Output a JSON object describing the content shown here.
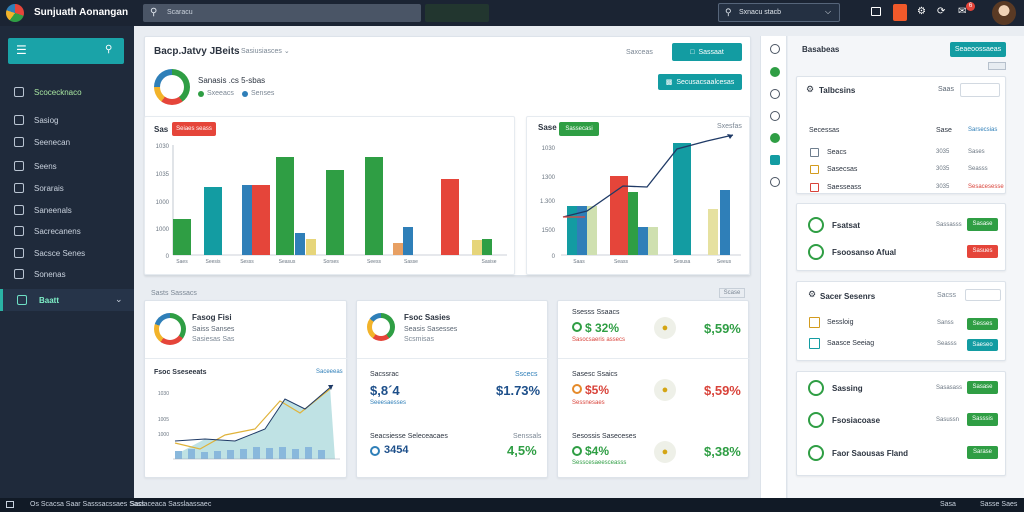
{
  "app": {
    "title": "Sunjuath Aonangan",
    "search_placeholder": "Scaracu",
    "search_right": "Sxnacu stacb",
    "notif_count": "6",
    "tab_placeholder": ""
  },
  "sidebar": {
    "items": [
      {
        "label": "Scocecknaco",
        "icon": "home-icon"
      },
      {
        "label": "Sasiog",
        "icon": "search-icon"
      },
      {
        "label": "Seenecan",
        "icon": "chart-icon"
      },
      {
        "label": "Seens",
        "icon": "list-icon"
      },
      {
        "label": "Sorarais",
        "icon": "table-icon"
      },
      {
        "label": "Saneenals",
        "icon": "document-icon"
      },
      {
        "label": "Sacrecanens",
        "icon": "mail-icon"
      },
      {
        "label": "Sacsce Senes",
        "icon": "settings-icon"
      },
      {
        "label": "Sonenas",
        "icon": "globe-icon"
      }
    ],
    "active": "Baatt"
  },
  "main": {
    "panel1": {
      "title": "Bacp.Jatvy JBeits",
      "filter": "Sasiusiasces",
      "action_label": "Saxceas",
      "btn1": "Sassaat",
      "btn2": "Secusacsaalcesas",
      "donut_label": "Sanasis .cs 5-sbas",
      "legend": [
        "Sxeeacs",
        "Senses"
      ],
      "chart_title": "Sas",
      "chart_tag": "Seiaes seass",
      "ylabels": [
        "1030",
        "1035",
        "1000",
        "1000",
        "0"
      ],
      "xlabels": [
        "Saes",
        "Seesis",
        "Sesss",
        "Seasus",
        "Sorses",
        "Seess",
        "Sasse",
        "Sasise"
      ]
    },
    "panel2": {
      "chart_title": "Sase",
      "chart_tag": "Sassecasi",
      "right_label": "Sxesfas",
      "ylabels": [
        "1030",
        "1300",
        "1.300",
        "1500",
        "0"
      ],
      "xlabels": [
        "Saas",
        "Seass",
        "Sesusa",
        "Seeus"
      ]
    },
    "section_label": "Sasts Sassacs",
    "section_right": "Scase",
    "cards": [
      {
        "title": "Fasog Fisi",
        "sub1": "Saiss Sanses",
        "sub2": "Sasiesas Sas",
        "chart_title": "Fsoc Sseseeats",
        "chart_right": "Saceeeas",
        "ylabels": [
          "1030",
          "1005",
          "1000"
        ]
      },
      {
        "title": "Fsoc Sasies",
        "sub1": "Seasis Sasesses",
        "sub2": "Scsmisas",
        "k1_label": "Sacssrac",
        "k1_value": "$,8´4",
        "k1_sub": "Seeesaesses",
        "k2_label": "Sscecs",
        "k2_value": "$1.73%",
        "k3_label": "Seacsiesse Seleceacaes",
        "k3_value": "3454",
        "k3_right": "Senssals",
        "k4_value": "4,5%"
      },
      {
        "r1_label": "Ssesss Ssaacs",
        "r1_value": "$ 32%",
        "r1_sub": "Sasocsaeris assecs",
        "r1_right": "$,59%",
        "r2_label": "Sasesc Ssaics",
        "r2_value": "$5%",
        "r2_sub": "Sessnesaes",
        "r2_right": "$,59%",
        "r3_label": "Sesossis Saseceses",
        "r3_value": "$4%",
        "r3_sub": "Sesscesaeesceasss",
        "r3_right": "$,38%"
      }
    ]
  },
  "right": {
    "panel_title": "Basabeas",
    "panel_btn": "Seaeoossaeas",
    "list1": {
      "title": "Talbcsins",
      "right": "Saas",
      "input": "",
      "head_label": "Secessas",
      "head_right": "Sase",
      "head_val": "Sarsecsias",
      "rows": [
        {
          "label": "Seacs",
          "v1": "3035",
          "v2": "Sases",
          "color": "#6f7e8e"
        },
        {
          "label": "Sasecsas",
          "v1": "3035",
          "v2": "Seasss",
          "color": "#d39b1e"
        },
        {
          "label": "Saesseass",
          "v1": "3035",
          "v2": "Sesacesesse",
          "color": "#d9433a"
        }
      ]
    },
    "status1": [
      {
        "label": "Fsatsat",
        "right": "Sassasss",
        "btn": "Sasase",
        "color": "green"
      },
      {
        "label": "Fsoosanso Afual",
        "right": "",
        "btn": "Sasues",
        "color": "red"
      }
    ],
    "list2": {
      "title": "Sacer Sesenrs",
      "right": "Sacss",
      "rows": [
        {
          "label": "Sessloig",
          "v1": "Sanss",
          "btn": "Sesses",
          "color": "green"
        },
        {
          "label": "Saasce Seeiag",
          "v1": "Seasss",
          "btn": "Saeseo",
          "color": "teal"
        }
      ]
    },
    "status2": [
      {
        "label": "Sassing",
        "right": "Sasasass",
        "btn": "Sasase",
        "color": "green"
      },
      {
        "label": "Fsosiacoase",
        "right": "Sasussn",
        "btn": "Sasssis",
        "color": "green"
      },
      {
        "label": "Faor Saousas Fland",
        "right": "",
        "btn": "Sarase",
        "color": "green"
      }
    ]
  },
  "statusbar": {
    "left": "Os Scacsa Saar Sasssacssaes Sass",
    "mid": "Saclaceaca Sasslaassaec",
    "right1": "Sasa",
    "right2": "Sasse Saes"
  },
  "colors": {
    "accent": "#139ca2",
    "green": "#2f9e44",
    "red": "#e5453a",
    "blue": "#2f7fb8",
    "navy": "#1b2433"
  }
}
